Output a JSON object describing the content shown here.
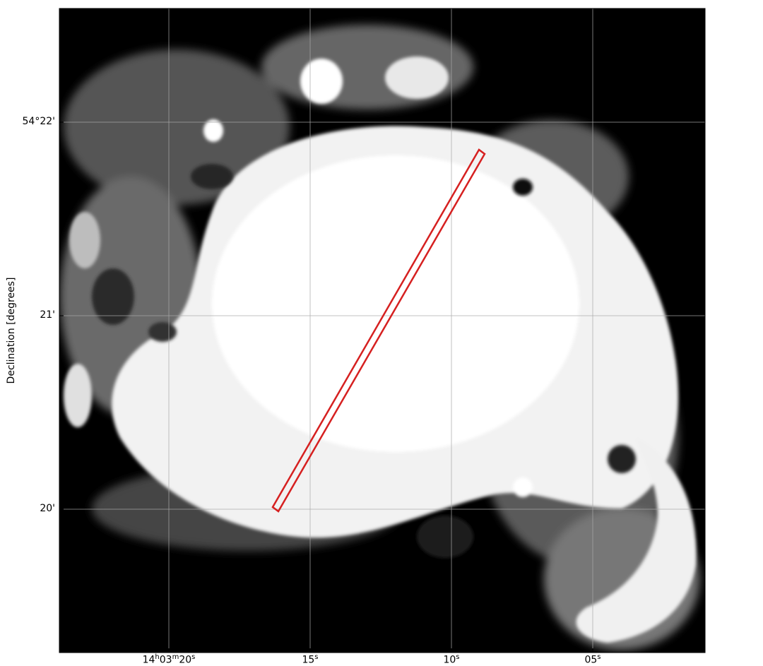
{
  "axes": {
    "ylabel": "Declination [degrees]",
    "y_ticks": [
      "54°22'",
      "21'",
      "20'"
    ],
    "x_ticks": [
      "14h03m20s",
      "15s",
      "10s",
      "05s"
    ]
  },
  "image": {
    "colormap": "grayscale",
    "grid": true
  },
  "overlay": {
    "shape": "rotated-rectangle",
    "color": "#d62020"
  }
}
